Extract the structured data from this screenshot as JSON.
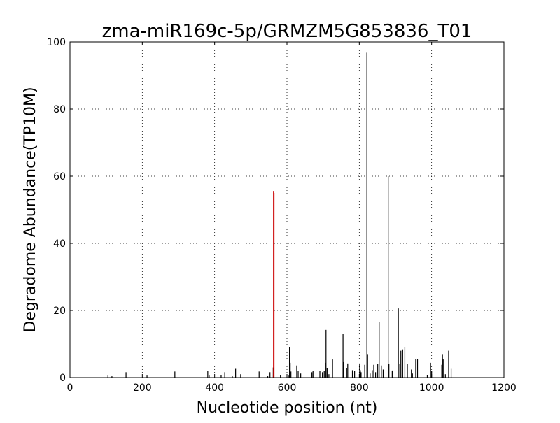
{
  "chart_data": {
    "type": "bar",
    "title": "zma-miR169c-5p/GRMZM5G853836_T01",
    "xlabel": "Nucleotide position (nt)",
    "ylabel": "Degradome Abundance(TP10M)",
    "xlim": [
      0,
      1200
    ],
    "ylim": [
      0,
      100
    ],
    "xticks": [
      0,
      200,
      400,
      600,
      800,
      1000,
      1200
    ],
    "yticks": [
      0,
      20,
      40,
      60,
      80,
      100
    ],
    "grid": true,
    "grid_style": "dotted",
    "series": [
      {
        "color": "#000000",
        "points": [
          [
            105,
            0.6
          ],
          [
            116,
            0.4
          ],
          [
            155,
            1.6
          ],
          [
            213,
            0.6
          ],
          [
            290,
            1.8
          ],
          [
            381,
            2.0
          ],
          [
            385,
            0.6
          ],
          [
            418,
            0.8
          ],
          [
            428,
            1.6
          ],
          [
            449,
            0.4
          ],
          [
            458,
            2.6
          ],
          [
            472,
            1.0
          ],
          [
            523,
            1.8
          ],
          [
            547,
            0.4
          ],
          [
            553,
            1.6
          ],
          [
            562,
            3.0
          ],
          [
            582,
            0.8
          ],
          [
            604,
            0.6
          ],
          [
            607,
            9.0
          ],
          [
            609,
            4.4
          ],
          [
            611,
            1.8
          ],
          [
            627,
            3.6
          ],
          [
            631,
            2.0
          ],
          [
            638,
            1.2
          ],
          [
            669,
            1.6
          ],
          [
            672,
            2.0
          ],
          [
            691,
            2.0
          ],
          [
            698,
            1.6
          ],
          [
            703,
            2.0
          ],
          [
            706,
            4.4
          ],
          [
            708,
            14.2
          ],
          [
            711,
            2.8
          ],
          [
            716,
            1.0
          ],
          [
            726,
            5.4
          ],
          [
            755,
            13.0
          ],
          [
            757,
            4.6
          ],
          [
            765,
            2.8
          ],
          [
            768,
            4.2
          ],
          [
            781,
            2.2
          ],
          [
            787,
            2.0
          ],
          [
            801,
            4.2
          ],
          [
            803,
            2.2
          ],
          [
            805,
            1.6
          ],
          [
            815,
            3.8
          ],
          [
            821,
            96.8
          ],
          [
            823,
            6.8
          ],
          [
            830,
            1.2
          ],
          [
            836,
            2.2
          ],
          [
            840,
            3.8
          ],
          [
            845,
            1.6
          ],
          [
            851,
            4.0
          ],
          [
            855,
            16.6
          ],
          [
            861,
            3.6
          ],
          [
            866,
            2.4
          ],
          [
            880,
            60.0
          ],
          [
            882,
            4.0
          ],
          [
            891,
            2.0
          ],
          [
            893,
            2.2
          ],
          [
            908,
            20.6
          ],
          [
            912,
            4.0
          ],
          [
            915,
            8.0
          ],
          [
            920,
            8.4
          ],
          [
            926,
            9.0
          ],
          [
            933,
            4.0
          ],
          [
            944,
            2.4
          ],
          [
            947,
            1.2
          ],
          [
            956,
            5.6
          ],
          [
            961,
            5.6
          ],
          [
            988,
            0.8
          ],
          [
            997,
            4.4
          ],
          [
            1000,
            2.0
          ],
          [
            1028,
            3.8
          ],
          [
            1030,
            6.8
          ],
          [
            1032,
            5.4
          ],
          [
            1038,
            1.0
          ],
          [
            1047,
            8.0
          ],
          [
            1054,
            2.6
          ]
        ]
      },
      {
        "color": "#cc0000",
        "points": [
          [
            563,
            55.6
          ],
          [
            564,
            55.0
          ]
        ]
      }
    ]
  }
}
